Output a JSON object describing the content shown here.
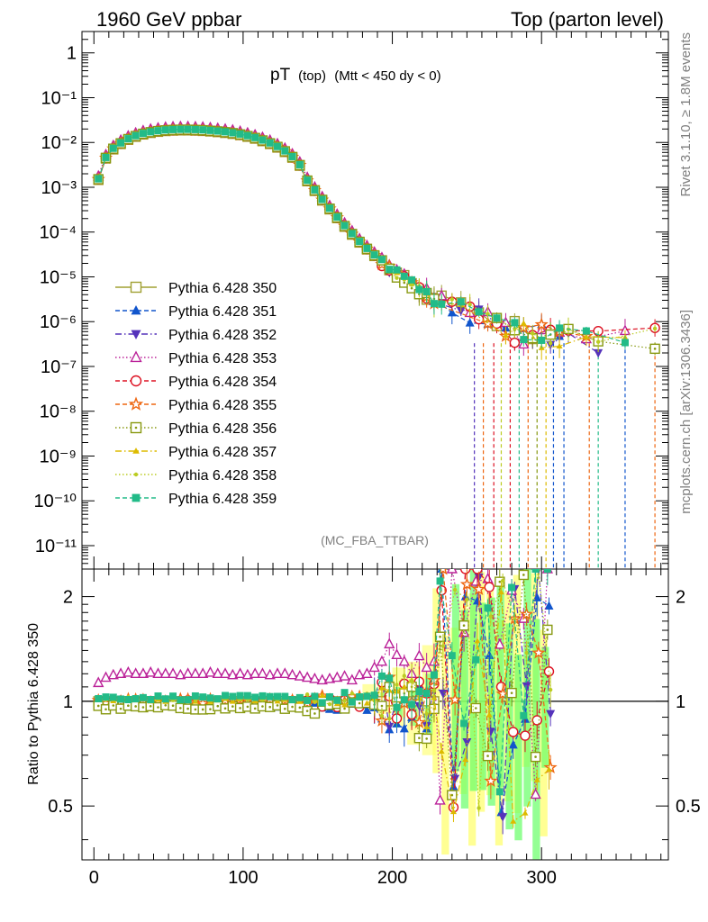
{
  "header": {
    "left_title": "1960 GeV ppbar",
    "right_title": "Top (parton level)"
  },
  "plot_title_main": "pT",
  "plot_title_sub1": "(top)",
  "plot_title_sub2": "(Mtt < 450 dy < 0)",
  "analysis_label": "(MC_FBA_TTBAR)",
  "side_label_top": "Rivet 3.1.10, ≥ 1.8M events",
  "side_label_bottom": "mcplots.cern.ch [arXiv:1306.3436]",
  "ratio_ylabel": "Ratio to Pythia 6.428 350",
  "colors": {
    "band_yellow": "#ffff66",
    "band_green": "#66ff66"
  },
  "chart_data": [
    {
      "type": "line",
      "yscale": "log",
      "xlim": [
        -8,
        385
      ],
      "ylim": [
        3e-12,
        3
      ],
      "y_tick_labels": [
        "1",
        "10⁻¹",
        "10⁻²",
        "10⁻³",
        "10⁻⁴",
        "10⁻⁵",
        "10⁻⁶",
        "10⁻⁷",
        "10⁻⁸",
        "10⁻⁹",
        "10⁻¹⁰",
        "10⁻¹¹"
      ],
      "x": [
        3,
        8,
        13,
        18,
        23,
        28,
        33,
        38,
        43,
        48,
        53,
        58,
        63,
        68,
        73,
        78,
        83,
        88,
        93,
        98,
        103,
        108,
        113,
        118,
        123,
        128,
        133,
        138,
        143,
        148,
        153,
        158,
        163,
        168,
        173,
        178,
        183,
        188,
        193,
        198,
        203,
        208,
        213,
        218,
        223,
        228
      ],
      "y": [
        0.0015,
        0.0045,
        0.0072,
        0.0095,
        0.0118,
        0.0138,
        0.0155,
        0.0168,
        0.0178,
        0.0185,
        0.0189,
        0.0191,
        0.0191,
        0.0189,
        0.0186,
        0.0181,
        0.0175,
        0.0168,
        0.016,
        0.015,
        0.0138,
        0.0125,
        0.011,
        0.0095,
        0.0079,
        0.0063,
        0.0047,
        0.0031,
        0.0014,
        0.00085,
        0.00052,
        0.00033,
        0.00021,
        0.000135,
        9e-05,
        6e-05,
        4.2e-05,
        3e-05,
        2.2e-05,
        1.6e-05,
        1.2e-05,
        9e-06,
        6.8e-06,
        5e-06,
        3.8e-06,
        2.9e-06
      ],
      "series": [
        {
          "name": "Pythia 6.428 350",
          "color": "#a0a032",
          "marker": "square-open",
          "dash": "solid"
        },
        {
          "name": "Pythia 6.428 351",
          "color": "#1155cc",
          "marker": "triangle-up",
          "dash": "dashed"
        },
        {
          "name": "Pythia 6.428 352",
          "color": "#5533bb",
          "marker": "triangle-down",
          "dash": "dashdot"
        },
        {
          "name": "Pythia 6.428 353",
          "color": "#bb2299",
          "marker": "triangle-open",
          "dash": "dotted"
        },
        {
          "name": "Pythia 6.428 354",
          "color": "#dd1122",
          "marker": "circle-open",
          "dash": "dashed"
        },
        {
          "name": "Pythia 6.428 355",
          "color": "#ee6611",
          "marker": "star-open",
          "dash": "dashed"
        },
        {
          "name": "Pythia 6.428 356",
          "color": "#889911",
          "marker": "square-open-dot",
          "dash": "dotted"
        },
        {
          "name": "Pythia 6.428 357",
          "color": "#ddbb00",
          "marker": "tri-dot",
          "dash": "dashdot"
        },
        {
          "name": "Pythia 6.428 358",
          "color": "#bbcc22",
          "marker": "dot",
          "dash": "dotted"
        },
        {
          "name": "Pythia 6.428 359",
          "color": "#22bb88",
          "marker": "square",
          "dash": "dashed"
        }
      ]
    },
    {
      "type": "line",
      "yscale": "log",
      "xlim": [
        -8,
        385
      ],
      "ylim": [
        0.35,
        2.4
      ],
      "y_ticks": [
        0.5,
        1,
        2
      ],
      "x_ticks": [
        0,
        100,
        200,
        300
      ],
      "reference_line": 1,
      "ratio_353": [
        1.13,
        1.17,
        1.19,
        1.2,
        1.21,
        1.2,
        1.2,
        1.21,
        1.2,
        1.2,
        1.2,
        1.19,
        1.2,
        1.2,
        1.2,
        1.21,
        1.2,
        1.2,
        1.19,
        1.2,
        1.19,
        1.2,
        1.2,
        1.19,
        1.2,
        1.2,
        1.19,
        1.18,
        1.17,
        1.16,
        1.15,
        1.16,
        1.17,
        1.18,
        1.15,
        1.19,
        1.2,
        1.25,
        1.3,
        1.46,
        1.36,
        1.3,
        1.2,
        1.35,
        1.25,
        1.3
      ],
      "bands": [
        {
          "x": 227,
          "x_end": 307,
          "color": "yellow"
        },
        {
          "x": 240,
          "x_end": 310,
          "color": "green"
        }
      ]
    }
  ]
}
